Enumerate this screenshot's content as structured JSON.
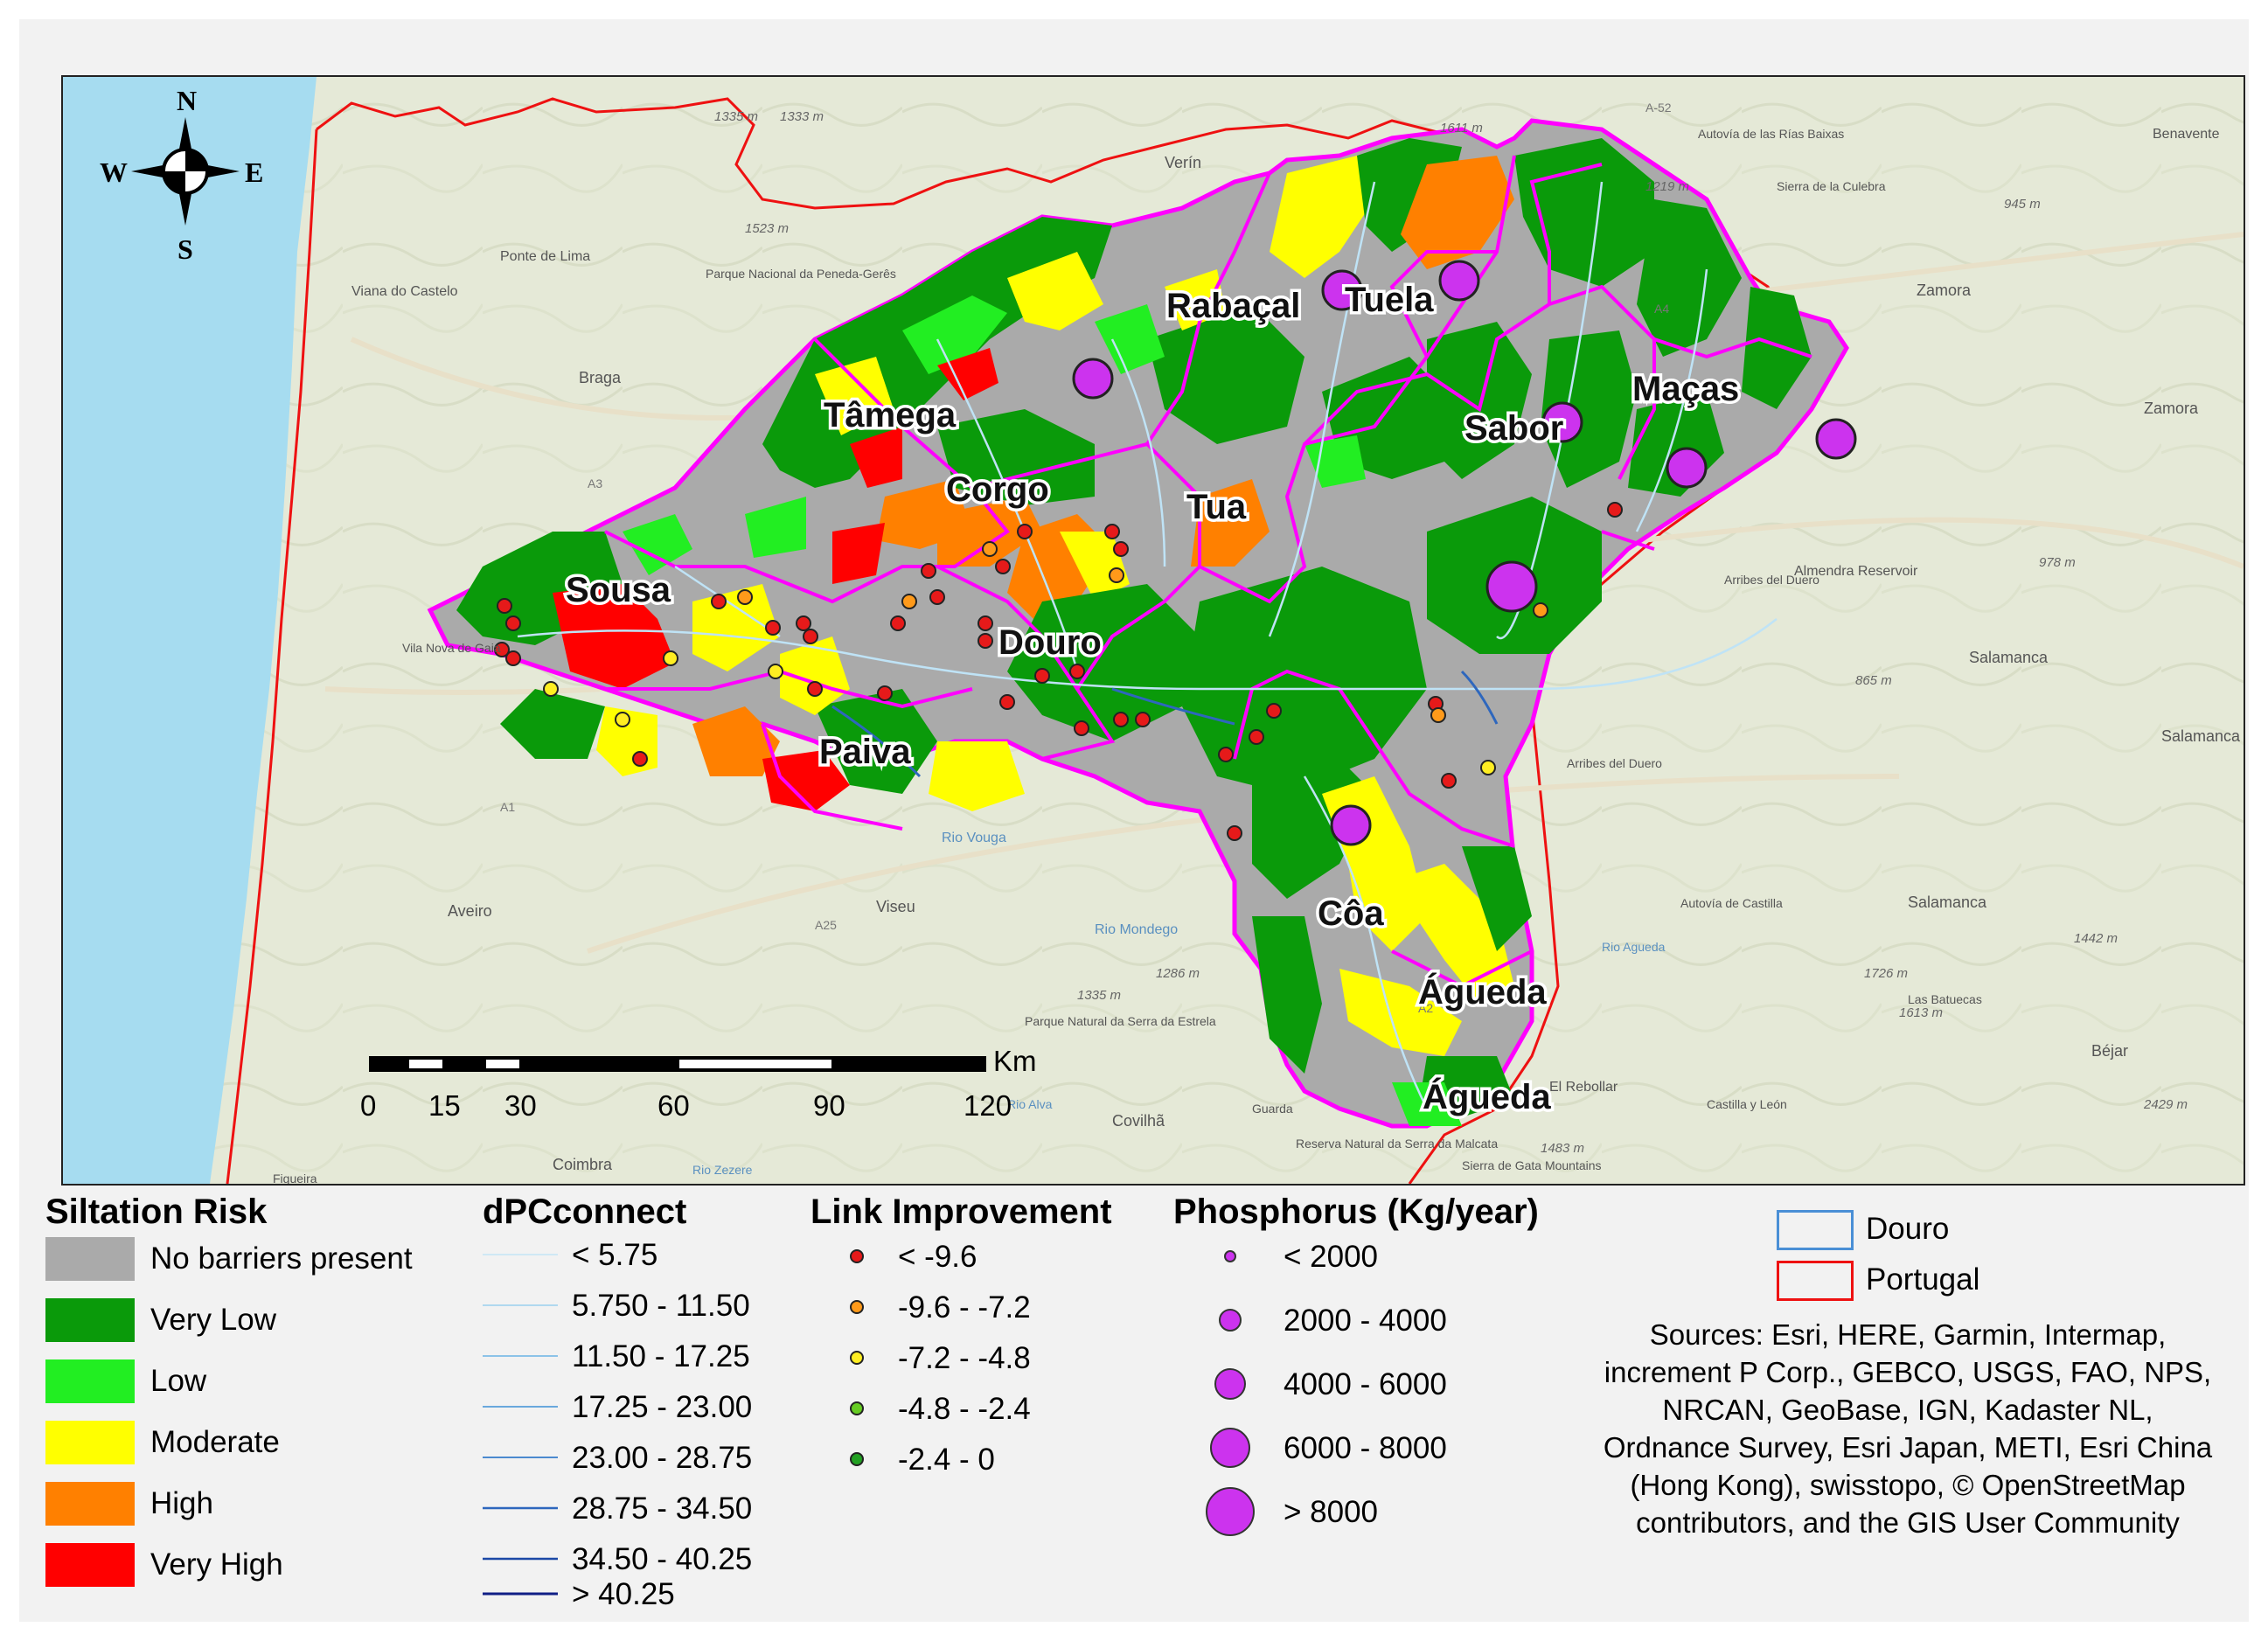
{
  "map": {
    "compass": {
      "n": "N",
      "s": "S",
      "e": "E",
      "w": "W"
    },
    "basin_labels": [
      "Rabaçal",
      "Tuela",
      "Tâmega",
      "Maças",
      "Sabor",
      "Corgo",
      "Tua",
      "Sousa",
      "Douro",
      "Paiva",
      "Côa",
      "Águeda",
      "Águeda"
    ],
    "place_labels": [
      "Verín",
      "Autovía de las Rías Baixas",
      "Benavente",
      "Ponte de Lima",
      "Parque Nacional da Peneda-Gerês",
      "Viana do Castelo",
      "Sierra de la Culebra",
      "Braga",
      "Zamora",
      "Zamora",
      "Vila Nova de Gaia",
      "Arribes del Duero",
      "Almendra Reservoir",
      "Salamanca",
      "Salamanca",
      "Salamanca",
      "Aveiro",
      "Viseu",
      "Rio Vouga",
      "Rio Mondego",
      "Autovía de Castilla",
      "Parque Natural da Serra da Estrela",
      "Covilhã",
      "El Rebollar",
      "Las Batuecas",
      "Béjar",
      "Reserva Natural da Serra da Malcata",
      "Sierra de Gata Mountains",
      "Coimbra",
      "Figueira",
      "Guarda",
      "Castilla y León",
      "Rio Agueda",
      "Rio Zezere",
      "Rio Alva",
      "Arribes del Duero"
    ],
    "elevation_labels": [
      "1335 m",
      "1333 m",
      "1611 m",
      "1523 m",
      "1219 m",
      "945 m",
      "978 m",
      "865 m",
      "1335 m",
      "1286 m",
      "1442 m",
      "1726 m",
      "1613 m",
      "2429 m",
      "1483 m"
    ],
    "road_labels": [
      "A-52",
      "A25",
      "A2",
      "A3",
      "A1",
      "A4"
    ],
    "scale_bar": {
      "unit": "Km",
      "ticks": [
        "0",
        "15",
        "30",
        "60",
        "90",
        "120"
      ]
    },
    "colors": {
      "no_barriers": "#aaaaaa",
      "very_low": "#0a9a0a",
      "low": "#22ee22",
      "moderate": "#ffff00",
      "high": "#ff8000",
      "very_high": "#ff0000",
      "basin_border": "#ff00ff",
      "portugal": "#ee1111",
      "sea": "#a6dcf0",
      "land": "#e6ead8",
      "phosphorus": "#cc33ee"
    }
  },
  "legend": {
    "siltation": {
      "title": "Siltation Risk",
      "items": [
        {
          "label": "No barriers present",
          "color": "#aaaaaa"
        },
        {
          "label": "Very Low",
          "color": "#0a9a0a"
        },
        {
          "label": "Low",
          "color": "#22ee22"
        },
        {
          "label": "Moderate",
          "color": "#ffff00"
        },
        {
          "label": "High",
          "color": "#ff8000"
        },
        {
          "label": "Very High",
          "color": "#ff0000"
        }
      ]
    },
    "dpc": {
      "title": "dPCconnect",
      "items": [
        {
          "label": "< 5.75",
          "color": "#cfe8f5"
        },
        {
          "label": "5.750 - 11.50",
          "color": "#b0d8ef"
        },
        {
          "label": "11.50 - 17.25",
          "color": "#8cc3e8"
        },
        {
          "label": "17.25 - 23.00",
          "color": "#6aa8dd"
        },
        {
          "label": "23.00 - 28.75",
          "color": "#4c8acf"
        },
        {
          "label": "28.75 - 34.50",
          "color": "#2e67bd"
        },
        {
          "label": "34.50 - 40.25",
          "color": "#1c48a6"
        },
        {
          "label": "> 40.25",
          "color": "#101f86"
        }
      ]
    },
    "link": {
      "title": "Link Improvement",
      "items": [
        {
          "label": "< -9.6",
          "color": "#e61a1a"
        },
        {
          "label": "-9.6 - -7.2",
          "color": "#ff9a1a"
        },
        {
          "label": "-7.2 - -4.8",
          "color": "#ffee22"
        },
        {
          "label": "-4.8 - -2.4",
          "color": "#66cc22"
        },
        {
          "label": "-2.4 - 0",
          "color": "#22a022"
        }
      ]
    },
    "phosphorus": {
      "title": "Phosphorus (Kg/year)",
      "items": [
        {
          "label": "< 2000",
          "r": 7
        },
        {
          "label": "2000 - 4000",
          "r": 12
        },
        {
          "label": "4000 - 6000",
          "r": 17
        },
        {
          "label": "6000 - 8000",
          "r": 22
        },
        {
          "label": "> 8000",
          "r": 27
        }
      ]
    },
    "boundaries": [
      {
        "label": "Douro",
        "color": "#4a8fd6"
      },
      {
        "label": "Portugal",
        "color": "#ee1111"
      }
    ],
    "sources": "Sources: Esri, HERE, Garmin, Intermap, increment P Corp., GEBCO, USGS, FAO, NPS, NRCAN, GeoBase, IGN, Kadaster NL, Ordnance Survey, Esri Japan, METI, Esri China (Hong Kong), swisstopo, © OpenStreetMap contributors, and the GIS User Community"
  }
}
